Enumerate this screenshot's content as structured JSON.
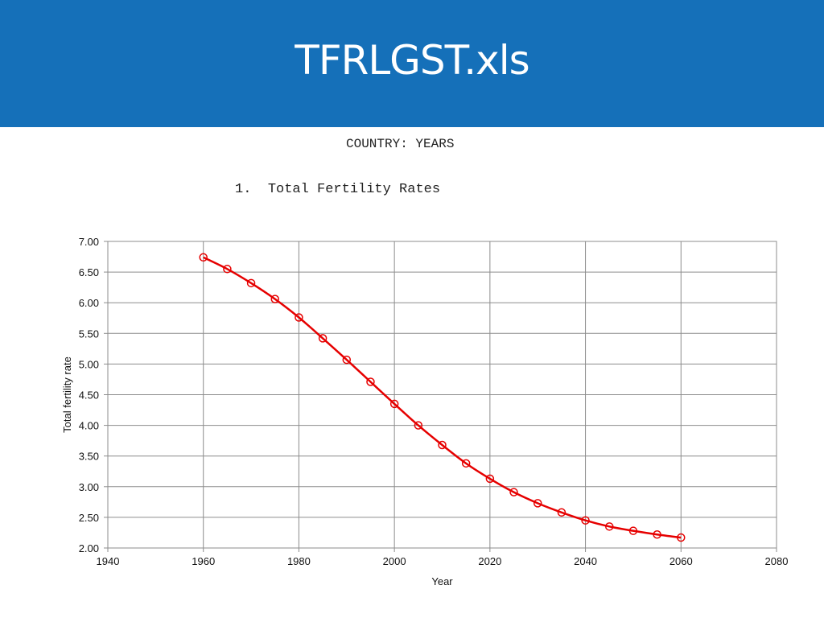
{
  "slide": {
    "title": "TFRLGST.xls",
    "header_line": "COUNTRY: YEARS",
    "section_number": "1.",
    "section_title": "Total Fertility Rates",
    "banner_color": "#1570b9"
  },
  "chart_data": {
    "type": "line",
    "title": "",
    "xlabel": "Year",
    "ylabel": "Total fertility rate",
    "xlim": [
      1940,
      2080
    ],
    "ylim": [
      2.0,
      7.0
    ],
    "x_ticks": [
      "1940",
      "1960",
      "1980",
      "2000",
      "2020",
      "2040",
      "2060",
      "2080"
    ],
    "y_ticks": [
      "2.00",
      "2.50",
      "3.00",
      "3.50",
      "4.00",
      "4.50",
      "5.00",
      "5.50",
      "6.00",
      "6.50",
      "7.00"
    ],
    "grid": true,
    "legend": "none",
    "series": [
      {
        "color": "#e60000",
        "marker": "open-circle",
        "x": [
          1960,
          1965,
          1970,
          1975,
          1980,
          1985,
          1990,
          1995,
          2000,
          2005,
          2010,
          2015,
          2020,
          2025,
          2030,
          2035,
          2040,
          2045,
          2050,
          2055,
          2060
        ],
        "y": [
          6.74,
          6.55,
          6.32,
          6.06,
          5.76,
          5.42,
          5.07,
          4.71,
          4.35,
          4.0,
          3.68,
          3.38,
          3.13,
          2.91,
          2.73,
          2.58,
          2.45,
          2.35,
          2.28,
          2.22,
          2.17
        ]
      }
    ]
  }
}
